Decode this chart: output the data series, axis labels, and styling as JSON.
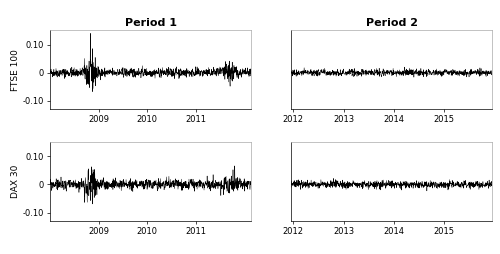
{
  "title_period1": "Period 1",
  "title_period2": "Period 2",
  "ylabel_top": "FTSE 100",
  "ylabel_bottom": "DAX 30",
  "ylim": [
    -0.13,
    0.15
  ],
  "yticks": [
    -0.1,
    0,
    0.1
  ],
  "ytick_labels": [
    "-0.10",
    "0",
    "0.10"
  ],
  "period1_xtick_labels": [
    "2009",
    "2010",
    "2011"
  ],
  "period2_xtick_labels": [
    "2012",
    "2013",
    "2014",
    "2015"
  ],
  "line_color": "#000000",
  "line_width": 0.35,
  "background_color": "#ffffff",
  "title_fontsize": 8,
  "tick_fontsize": 6,
  "ylabel_fontsize": 6.5
}
